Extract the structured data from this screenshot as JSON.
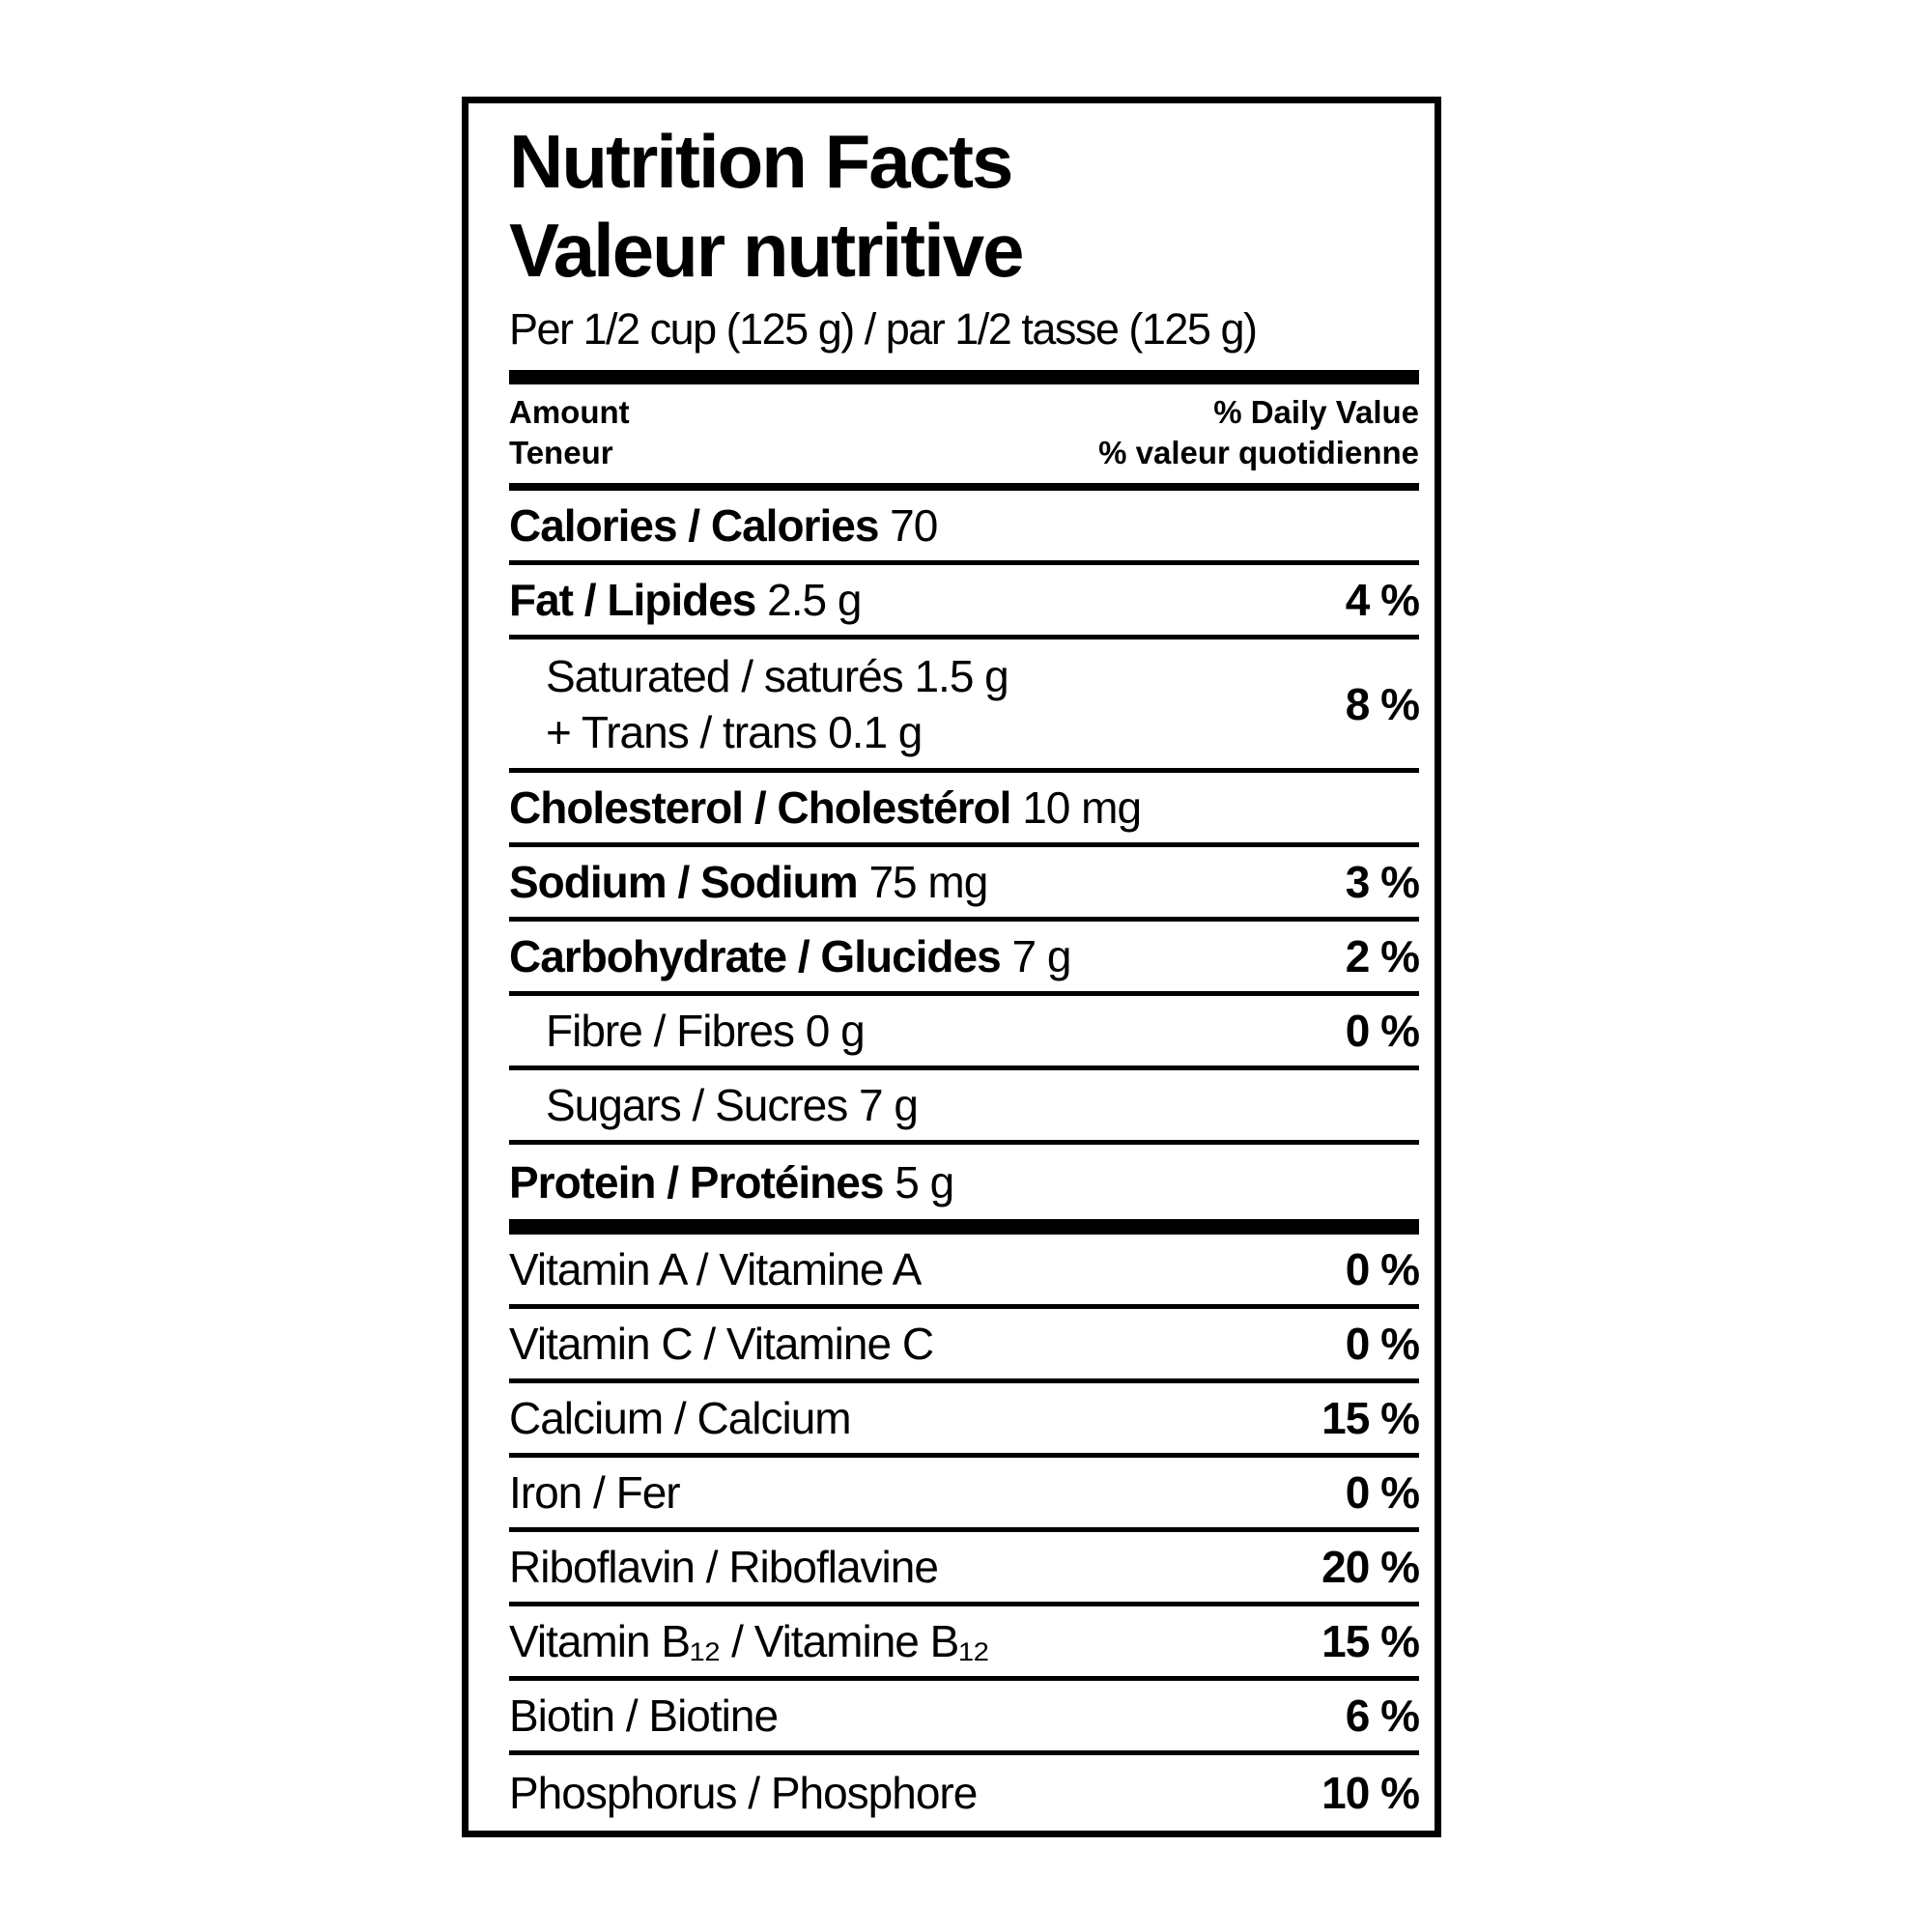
{
  "page": {
    "background": "#ffffff",
    "label_border_color": "#000000",
    "text_color": "#000000"
  },
  "label": {
    "title_en": "Nutrition Facts",
    "title_fr": "Valeur nutritive",
    "serving_line": "Per 1/2 cup (125 g) / par 1/2 tasse (125 g)",
    "column_header": {
      "amount_en": "Amount",
      "amount_fr": "Teneur",
      "daily_value_en": "% Daily Value",
      "daily_value_fr": "% valeur quotidienne"
    },
    "rows": [
      {
        "name": "Calories / Calories",
        "amount": "70",
        "dv": "",
        "variant": "bold"
      },
      {
        "name": "Fat / Lipides",
        "amount": "2.5 g",
        "dv": "4 %",
        "variant": "bold"
      },
      {
        "name": "Saturated / saturés",
        "amount": "1.5 g",
        "name2": "+ Trans / trans",
        "amount2": "0.1 g",
        "dv": "8 %",
        "variant": "sub"
      },
      {
        "name": "Cholesterol / Cholestérol",
        "amount": "10 mg",
        "dv": "",
        "variant": "bold"
      },
      {
        "name": "Sodium / Sodium",
        "amount": "75 mg",
        "dv": "3 %",
        "variant": "bold"
      },
      {
        "name": "Carbohydrate / Glucides",
        "amount": "7 g",
        "dv": "2 %",
        "variant": "bold"
      },
      {
        "name": "Fibre / Fibres",
        "amount": "0 g",
        "dv": "0 %",
        "variant": "sub"
      },
      {
        "name": "Sugars / Sucres",
        "amount": "7 g",
        "dv": "",
        "variant": "sub"
      },
      {
        "name": "Protein / Protéines",
        "amount": "5 g",
        "dv": "",
        "variant": "bold",
        "thick_after": true
      },
      {
        "name": "Vitamin A / Vitamine A",
        "amount": "",
        "dv": "0 %",
        "variant": "plain"
      },
      {
        "name": "Vitamin C / Vitamine C",
        "amount": "",
        "dv": "0 %",
        "variant": "plain"
      },
      {
        "name": "Calcium / Calcium",
        "amount": "",
        "dv": "15 %",
        "variant": "plain"
      },
      {
        "name": "Iron / Fer",
        "amount": "",
        "dv": "0 %",
        "variant": "plain"
      },
      {
        "name": "Riboflavin / Riboflavine",
        "amount": "",
        "dv": "20 %",
        "variant": "plain"
      },
      {
        "name": "Vitamin B₁₂ / Vitamine B₁₂",
        "amount": "",
        "dv": "15 %",
        "variant": "plain"
      },
      {
        "name": "Biotin / Biotine",
        "amount": "",
        "dv": "6 %",
        "variant": "plain"
      },
      {
        "name": "Phosphorus / Phosphore",
        "amount": "",
        "dv": "10 %",
        "variant": "plain"
      }
    ]
  }
}
